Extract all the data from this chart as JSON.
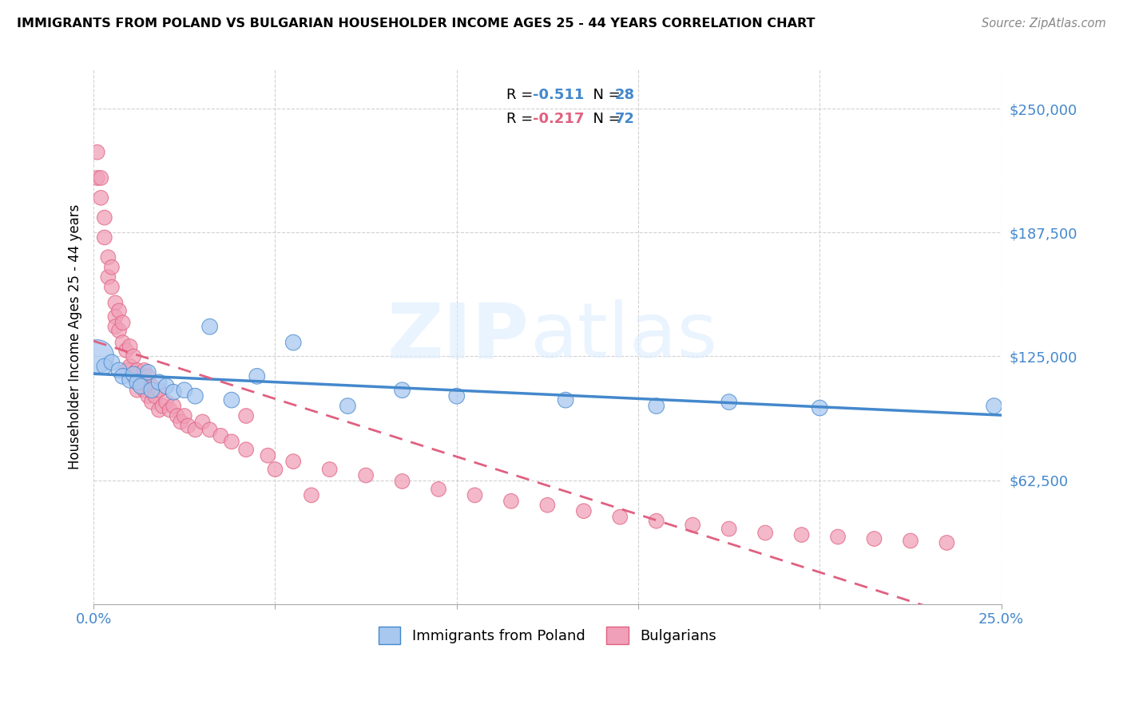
{
  "title": "IMMIGRANTS FROM POLAND VS BULGARIAN HOUSEHOLDER INCOME AGES 25 - 44 YEARS CORRELATION CHART",
  "source": "Source: ZipAtlas.com",
  "ylabel": "Householder Income Ages 25 - 44 years",
  "yticks": [
    62500,
    125000,
    187500,
    250000
  ],
  "ytick_labels": [
    "$62,500",
    "$125,000",
    "$187,500",
    "$250,000"
  ],
  "xmin": 0.0,
  "xmax": 0.25,
  "ymin": 0,
  "ymax": 270000,
  "legend_label1": "Immigrants from Poland",
  "legend_label2": "Bulgarians",
  "r1": "-0.511",
  "n1": "28",
  "r2": "-0.217",
  "n2": "72",
  "color_blue": "#A8C8F0",
  "color_pink": "#F0A0B8",
  "color_blue_line": "#4488CC",
  "color_pink_line": "#E06080",
  "color_blue_text": "#4488CC",
  "color_pink_text": "#E06080",
  "poland_x": [
    0.001,
    0.003,
    0.005,
    0.007,
    0.008,
    0.01,
    0.011,
    0.012,
    0.013,
    0.015,
    0.016,
    0.018,
    0.02,
    0.022,
    0.025,
    0.028,
    0.032,
    0.038,
    0.045,
    0.055,
    0.07,
    0.085,
    0.1,
    0.13,
    0.155,
    0.175,
    0.2,
    0.248
  ],
  "poland_y": [
    125000,
    120000,
    122000,
    118000,
    115000,
    113000,
    116000,
    112000,
    110000,
    117000,
    108000,
    112000,
    110000,
    107000,
    108000,
    105000,
    140000,
    103000,
    115000,
    132000,
    100000,
    108000,
    105000,
    103000,
    100000,
    102000,
    99000,
    100000
  ],
  "polish_big_bubble_idx": 0,
  "bulgarian_x": [
    0.001,
    0.001,
    0.002,
    0.002,
    0.003,
    0.003,
    0.004,
    0.004,
    0.005,
    0.005,
    0.006,
    0.006,
    0.006,
    0.007,
    0.007,
    0.008,
    0.008,
    0.009,
    0.009,
    0.01,
    0.01,
    0.011,
    0.011,
    0.012,
    0.012,
    0.013,
    0.014,
    0.014,
    0.015,
    0.015,
    0.016,
    0.016,
    0.017,
    0.018,
    0.018,
    0.019,
    0.02,
    0.021,
    0.022,
    0.023,
    0.024,
    0.025,
    0.026,
    0.028,
    0.03,
    0.032,
    0.035,
    0.038,
    0.042,
    0.048,
    0.055,
    0.065,
    0.075,
    0.085,
    0.095,
    0.105,
    0.115,
    0.125,
    0.135,
    0.145,
    0.155,
    0.165,
    0.175,
    0.185,
    0.195,
    0.205,
    0.215,
    0.225,
    0.235,
    0.042,
    0.05,
    0.06
  ],
  "bulgarian_y": [
    228000,
    215000,
    215000,
    205000,
    195000,
    185000,
    175000,
    165000,
    170000,
    160000,
    152000,
    145000,
    140000,
    148000,
    138000,
    142000,
    132000,
    128000,
    118000,
    130000,
    120000,
    125000,
    115000,
    118000,
    108000,
    112000,
    118000,
    108000,
    115000,
    105000,
    110000,
    102000,
    105000,
    108000,
    98000,
    100000,
    102000,
    98000,
    100000,
    95000,
    92000,
    95000,
    90000,
    88000,
    92000,
    88000,
    85000,
    82000,
    78000,
    75000,
    72000,
    68000,
    65000,
    62000,
    58000,
    55000,
    52000,
    50000,
    47000,
    44000,
    42000,
    40000,
    38000,
    36000,
    35000,
    34000,
    33000,
    32000,
    31000,
    95000,
    68000,
    55000
  ]
}
